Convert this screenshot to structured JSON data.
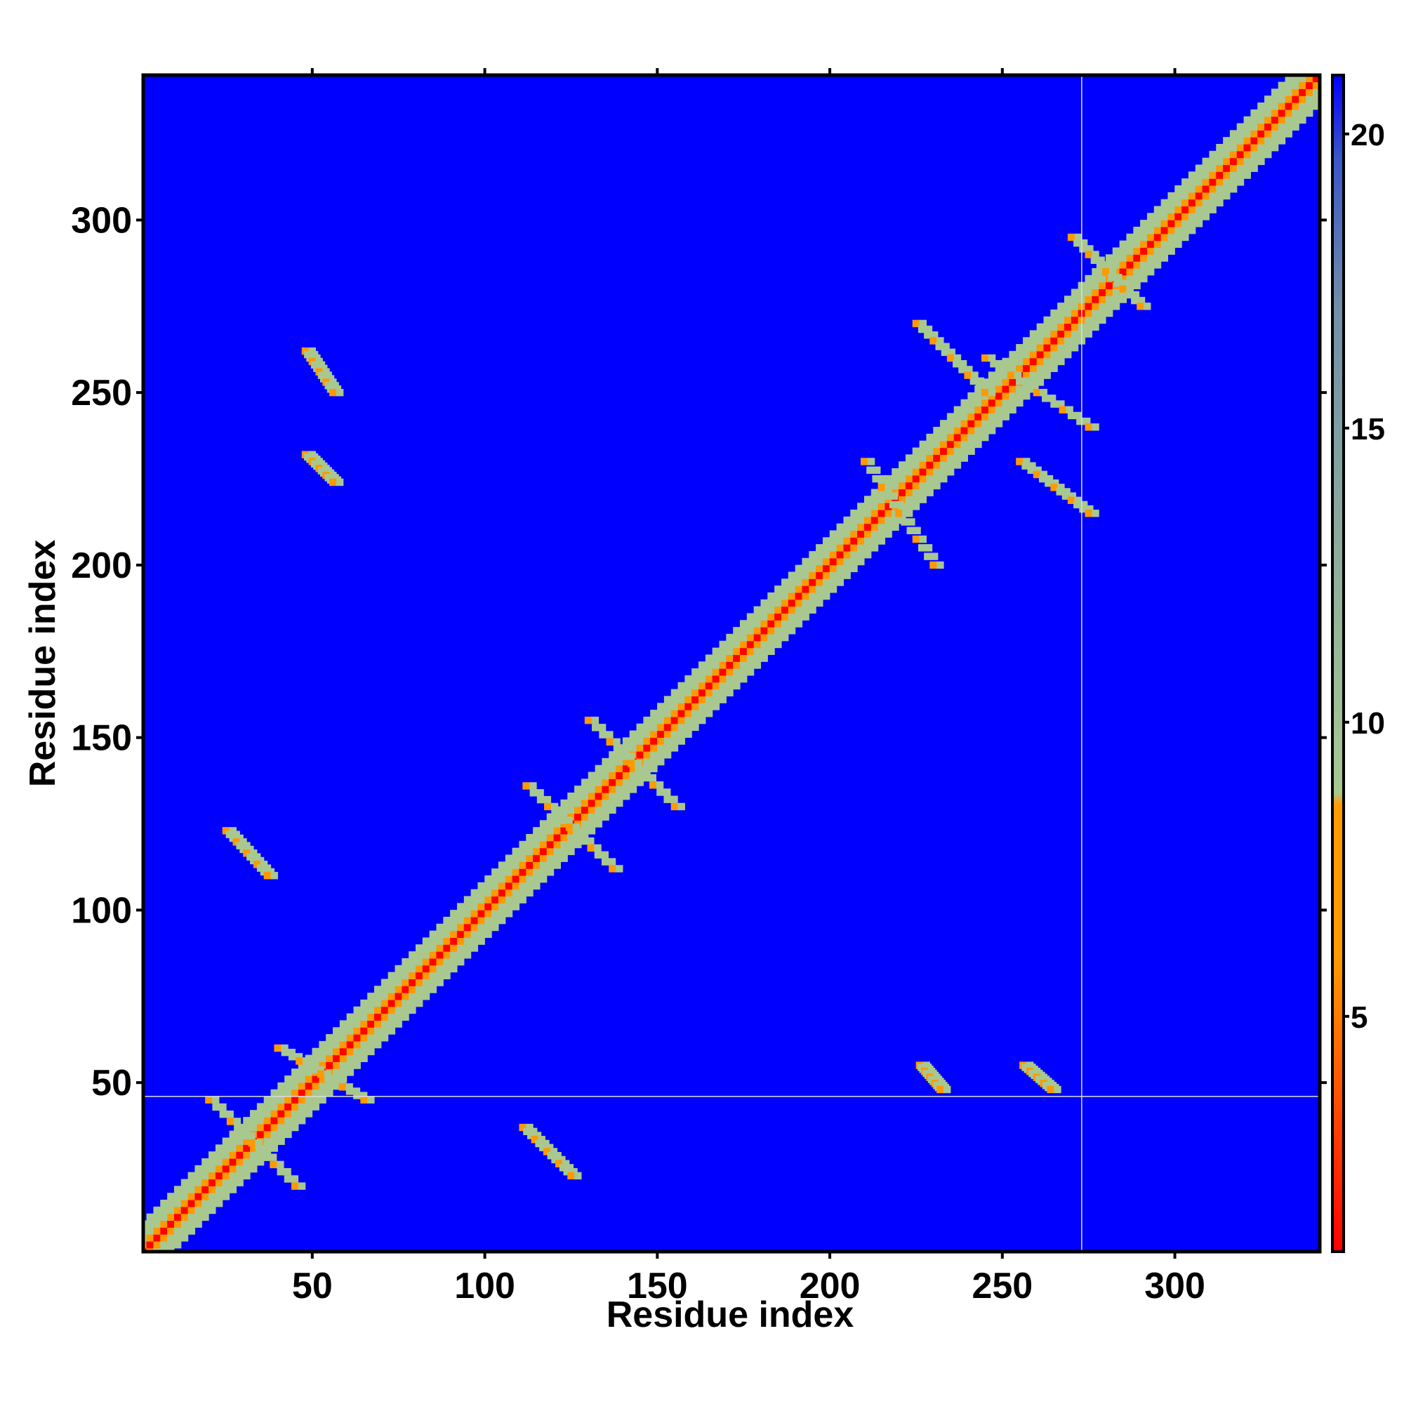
{
  "chart_data": {
    "type": "heatmap",
    "title": "",
    "xlabel": "Residue index",
    "ylabel": "Residue index",
    "xlim": [
      1,
      342
    ],
    "ylim": [
      1,
      342
    ],
    "x_ticks": [
      50,
      100,
      150,
      200,
      250,
      300
    ],
    "y_ticks": [
      50,
      100,
      150,
      200,
      250,
      300
    ],
    "colorbar": {
      "range": [
        1,
        21
      ],
      "ticks": [
        5,
        10,
        15,
        20
      ],
      "colormap": [
        "#ff0000",
        "#ff9900",
        "#a8c890",
        "#7090a8",
        "#0000ff"
      ]
    },
    "background_color": "#0000ff",
    "crosshair": {
      "x": 273,
      "y": 46
    },
    "diagonal_band": {
      "range": [
        1,
        342
      ]
    },
    "contact_clusters": [
      {
        "x": [
          20,
          45
        ],
        "y": [
          45,
          20
        ]
      },
      {
        "x": [
          25,
          37
        ],
        "y": [
          123,
          110
        ]
      },
      {
        "x": [
          40,
          65
        ],
        "y": [
          60,
          45
        ]
      },
      {
        "x": [
          111,
          125
        ],
        "y": [
          37,
          23
        ]
      },
      {
        "x": [
          112,
          137
        ],
        "y": [
          136,
          112
        ]
      },
      {
        "x": [
          130,
          155
        ],
        "y": [
          155,
          130
        ]
      },
      {
        "x": [
          210,
          230
        ],
        "y": [
          230,
          200
        ]
      },
      {
        "x": [
          225,
          245
        ],
        "y": [
          270,
          250
        ]
      },
      {
        "x": [
          245,
          275
        ],
        "y": [
          260,
          240
        ]
      },
      {
        "x": [
          255,
          275
        ],
        "y": [
          230,
          215
        ]
      },
      {
        "x": [
          270,
          290
        ],
        "y": [
          295,
          275
        ]
      },
      {
        "x": [
          226,
          232
        ],
        "y": [
          55,
          48
        ]
      },
      {
        "x": [
          256,
          264
        ],
        "y": [
          55,
          48
        ]
      },
      {
        "x": [
          48,
          56
        ],
        "y": [
          262,
          250
        ]
      },
      {
        "x": [
          48,
          56
        ],
        "y": [
          232,
          224
        ]
      }
    ]
  }
}
